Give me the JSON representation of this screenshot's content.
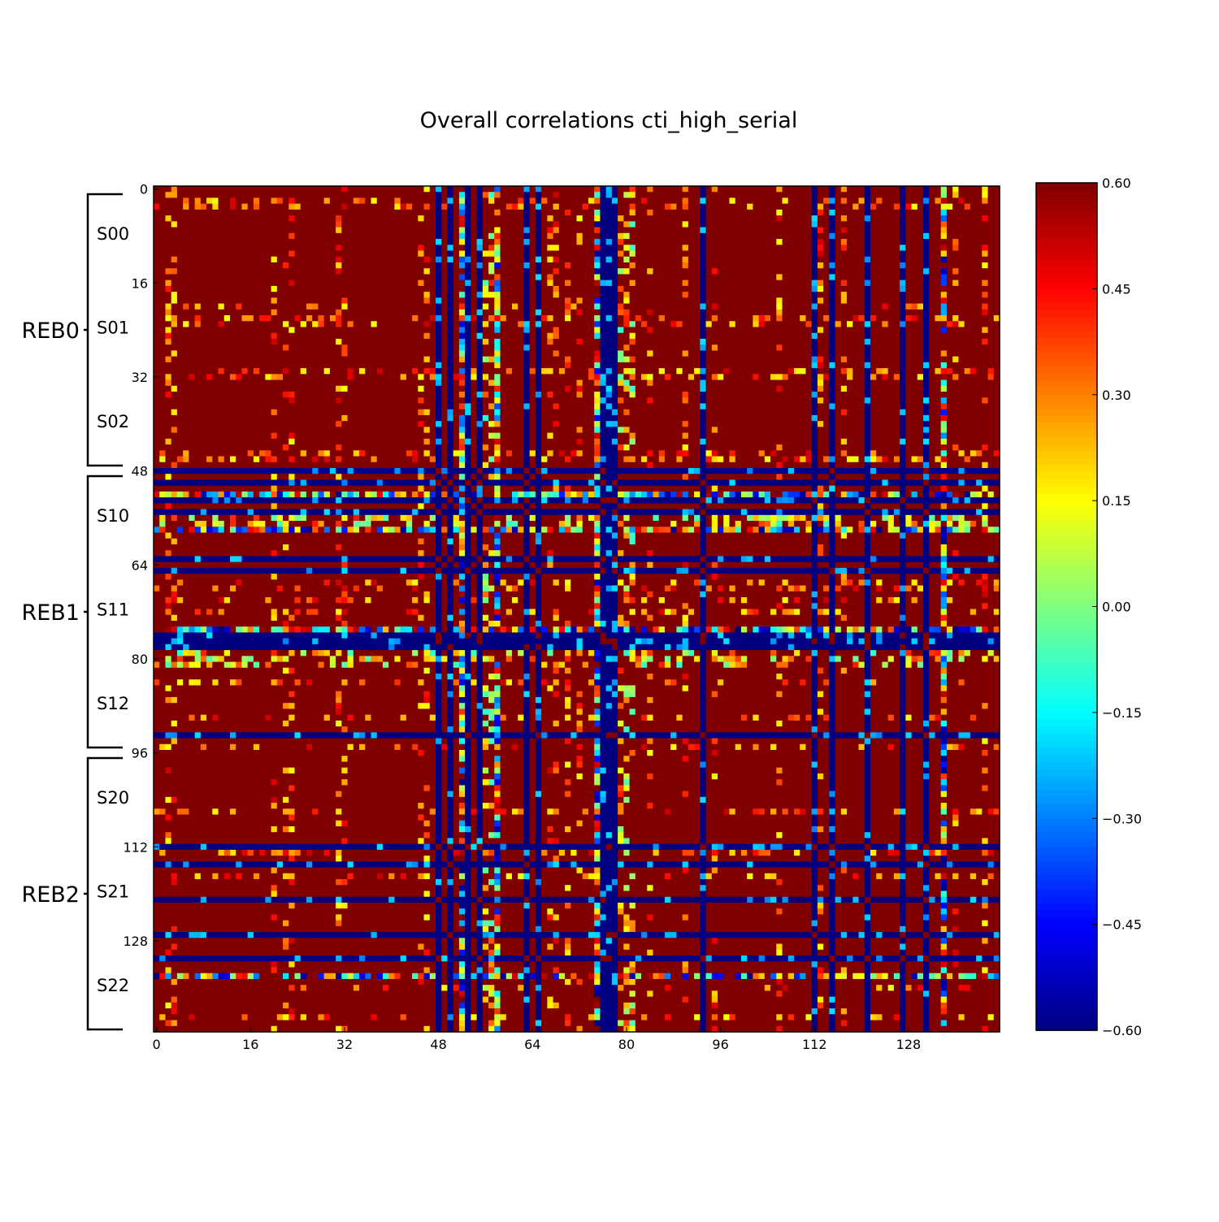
{
  "chart_data": {
    "type": "heatmap",
    "title": "Overall correlations cti_high_serial",
    "n": 144,
    "x_ticks": [
      "0",
      "16",
      "32",
      "48",
      "64",
      "80",
      "96",
      "112",
      "128"
    ],
    "y_ticks": [
      "0",
      "16",
      "32",
      "48",
      "64",
      "80",
      "96",
      "112",
      "128"
    ],
    "segments": [
      "S00",
      "S01",
      "S02",
      "S10",
      "S11",
      "S12",
      "S20",
      "S21",
      "S22"
    ],
    "groups": [
      "REB0",
      "REB1",
      "REB2"
    ],
    "colorbar": {
      "colormap": "jet",
      "vmin": -0.6,
      "vmax": 0.6,
      "ticks": [
        "0.60",
        "0.45",
        "0.30",
        "0.15",
        "0.00",
        "−0.15",
        "−0.30",
        "−0.45",
        "−0.60"
      ]
    },
    "strong_negative_channels": [
      48,
      50,
      53,
      55,
      63,
      65,
      76,
      77,
      78,
      93,
      112,
      115,
      121,
      127,
      131
    ],
    "mixed_channels": [
      52,
      58,
      75,
      134
    ],
    "mixed_row_channels": [
      52,
      56,
      57,
      63,
      65,
      75,
      79,
      80,
      81,
      93,
      112,
      115,
      121,
      127,
      131
    ],
    "sparse_channels": [
      2,
      3,
      20,
      22,
      23,
      31,
      32,
      45,
      46,
      67,
      68,
      70,
      72,
      84,
      90,
      95,
      106,
      113,
      117,
      136,
      141
    ]
  }
}
